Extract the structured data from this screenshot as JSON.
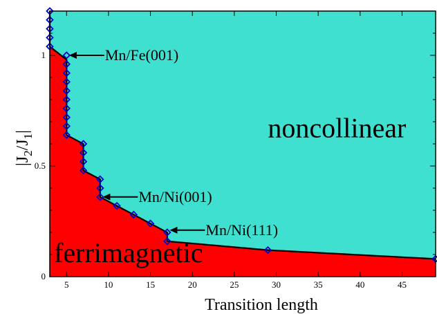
{
  "chart_data": {
    "type": "area",
    "title": "",
    "xlabel": "Transition length",
    "ylabel_main": "|J",
    "ylabel_sub1": "2",
    "ylabel_mid": "/J",
    "ylabel_sub2": "1",
    "ylabel_end": "|",
    "xlim": [
      3,
      49
    ],
    "ylim": [
      0,
      1.2
    ],
    "xticks": [
      5,
      10,
      15,
      20,
      25,
      30,
      35,
      40,
      45
    ],
    "yticks": [
      0,
      0.5,
      1
    ],
    "ytick_labels": [
      "0",
      "0.5",
      "1"
    ],
    "grid": false,
    "boundary": [
      [
        3,
        1.2
      ],
      [
        3,
        1.04
      ],
      [
        5,
        0.98
      ],
      [
        5,
        0.64
      ],
      [
        7,
        0.6
      ],
      [
        7,
        0.48
      ],
      [
        9,
        0.44
      ],
      [
        9,
        0.36
      ],
      [
        11,
        0.32
      ],
      [
        13,
        0.28
      ],
      [
        15,
        0.24
      ],
      [
        17,
        0.2
      ],
      [
        17,
        0.16
      ],
      [
        29,
        0.12
      ],
      [
        49,
        0.08
      ]
    ],
    "points": [
      [
        3,
        1.2
      ],
      [
        3,
        1.16
      ],
      [
        3,
        1.12
      ],
      [
        3,
        1.08
      ],
      [
        3,
        1.04
      ],
      [
        5,
        1.0
      ],
      [
        5,
        0.96
      ],
      [
        5,
        0.92
      ],
      [
        5,
        0.88
      ],
      [
        5,
        0.84
      ],
      [
        5,
        0.8
      ],
      [
        5,
        0.76
      ],
      [
        5,
        0.72
      ],
      [
        5,
        0.68
      ],
      [
        5,
        0.64
      ],
      [
        7,
        0.6
      ],
      [
        7,
        0.56
      ],
      [
        7,
        0.52
      ],
      [
        7,
        0.48
      ],
      [
        9,
        0.44
      ],
      [
        9,
        0.4
      ],
      [
        9,
        0.36
      ],
      [
        11,
        0.32
      ],
      [
        13,
        0.28
      ],
      [
        15,
        0.24
      ],
      [
        17,
        0.2
      ],
      [
        17,
        0.16
      ],
      [
        29,
        0.12
      ],
      [
        49,
        0.08
      ]
    ],
    "regions": {
      "upper": {
        "label": "noncollinear",
        "color": "#40e0d0",
        "label_at": [
          29,
          0.63
        ]
      },
      "lower": {
        "label": "ferrimagnetic",
        "color": "#ff0000",
        "label_at": [
          3.5,
          0.065
        ]
      }
    },
    "annotations": [
      {
        "label": "Mn/Fe(001)",
        "arrow_to": [
          5.3,
          1.0
        ],
        "arrow_from": [
          9.5,
          1.0
        ]
      },
      {
        "label": "Mn/Ni(001)",
        "arrow_to": [
          9.3,
          0.36
        ],
        "arrow_from": [
          13.5,
          0.36
        ]
      },
      {
        "label": "Mn/Ni(111)",
        "arrow_to": [
          17.3,
          0.21
        ],
        "arrow_from": [
          21.5,
          0.21
        ]
      }
    ],
    "colors": {
      "marker": "#0000cc",
      "boundary": "#000000"
    }
  }
}
